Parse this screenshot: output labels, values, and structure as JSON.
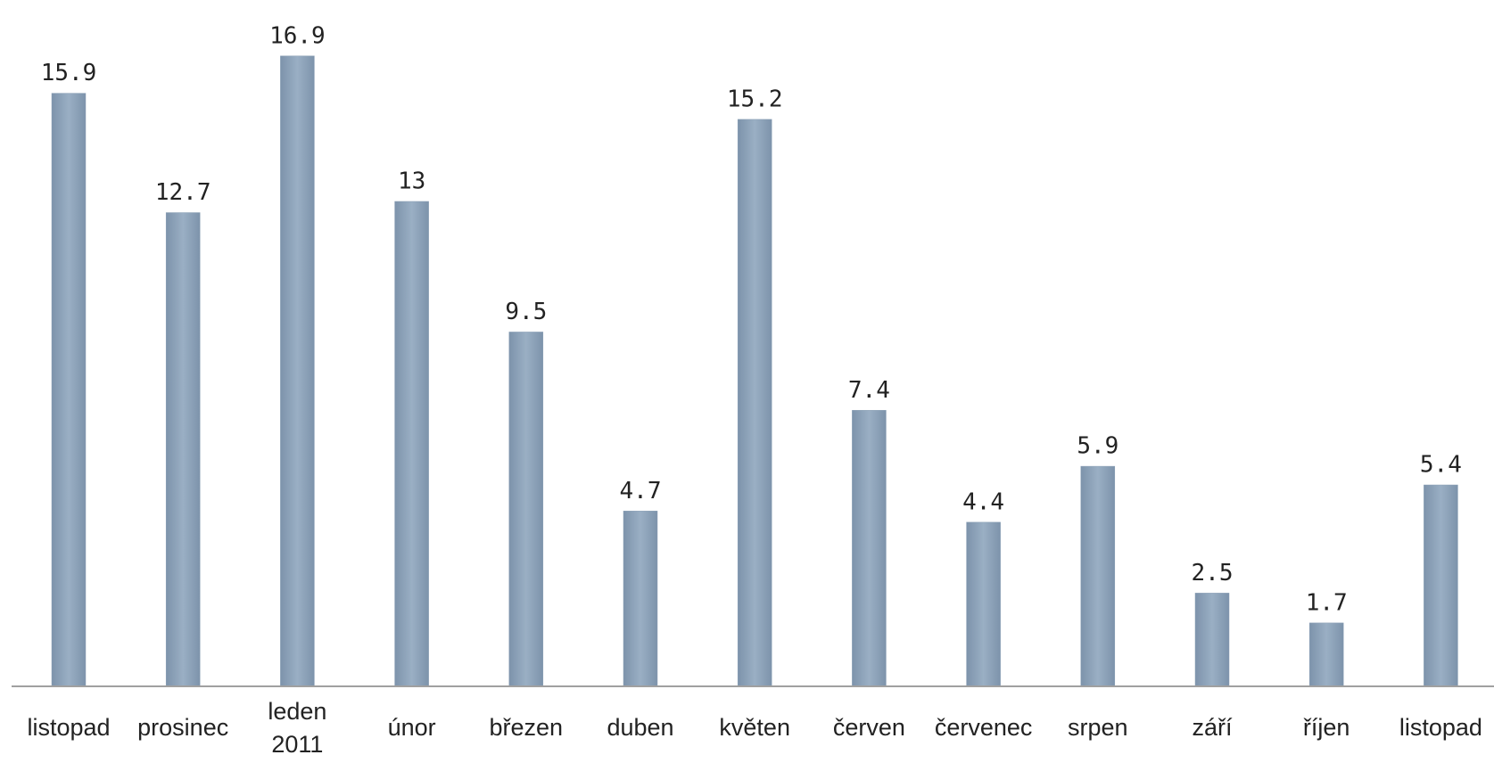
{
  "chart_data": {
    "type": "bar",
    "categories": [
      "listopad",
      "prosinec",
      "leden 2011",
      "únor",
      "březen",
      "duben",
      "květen",
      "červen",
      "červenec",
      "srpen",
      "září",
      "říjen",
      "listopad"
    ],
    "values": [
      15.9,
      12.7,
      16.9,
      13,
      9.5,
      4.7,
      15.2,
      7.4,
      4.4,
      5.9,
      2.5,
      1.7,
      5.4
    ],
    "color": "#8a9fb5",
    "ylim": [
      0,
      18.4
    ]
  }
}
